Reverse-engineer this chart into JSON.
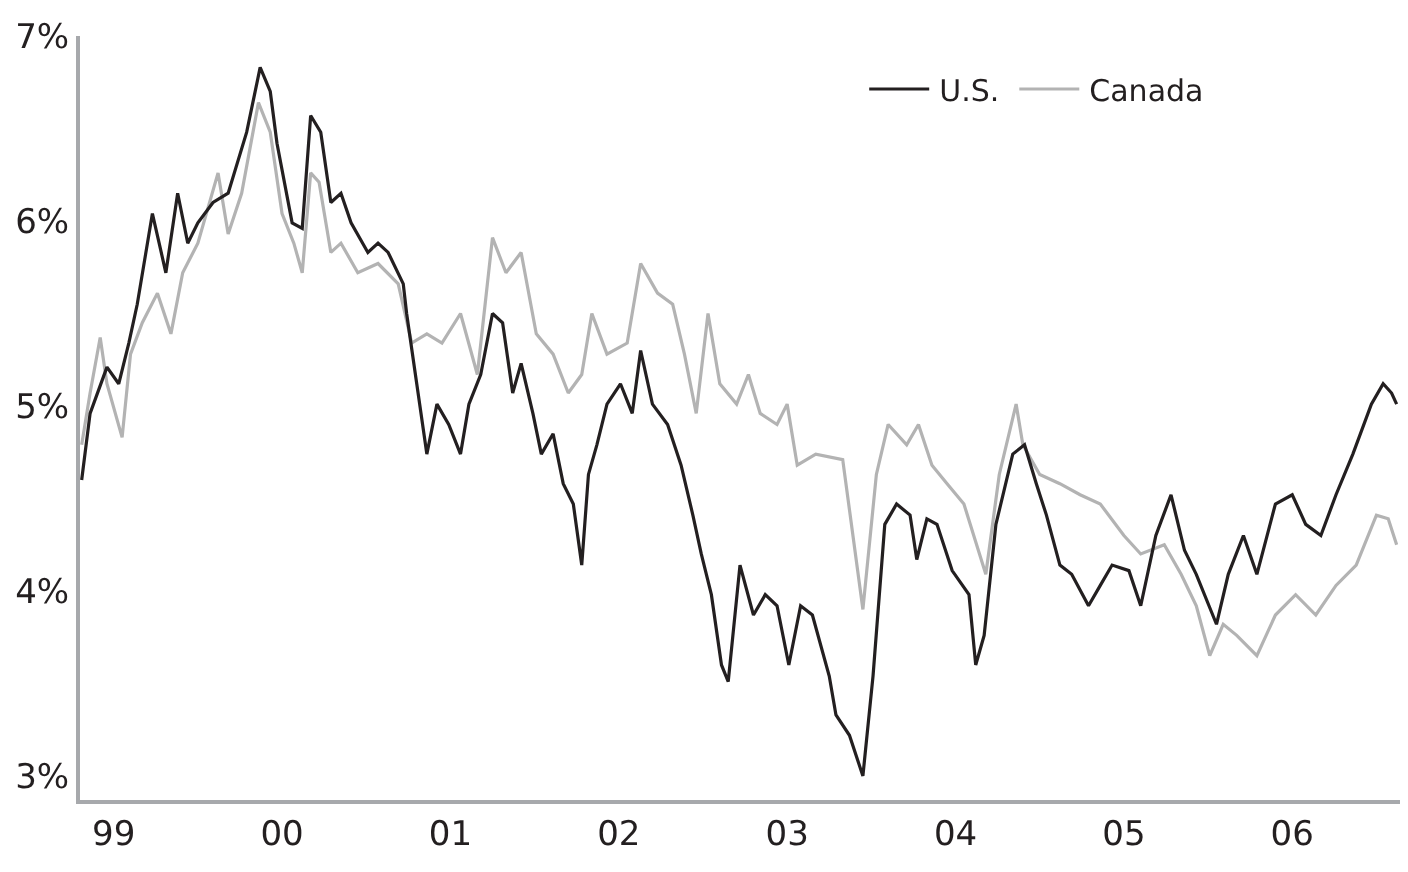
{
  "chart_data": {
    "type": "line",
    "xlim": [
      1998.8,
      2006.64
    ],
    "ylim": [
      2.87,
      7.0
    ],
    "xticks": [
      {
        "value": 1999,
        "label": "99"
      },
      {
        "value": 2000,
        "label": "00"
      },
      {
        "value": 2001,
        "label": "01"
      },
      {
        "value": 2002,
        "label": "02"
      },
      {
        "value": 2003,
        "label": "03"
      },
      {
        "value": 2004,
        "label": "04"
      },
      {
        "value": 2005,
        "label": "05"
      },
      {
        "value": 2006,
        "label": "06"
      }
    ],
    "yticks": [
      {
        "value": 3,
        "label": "3%"
      },
      {
        "value": 4,
        "label": "4%"
      },
      {
        "value": 5,
        "label": "5%"
      },
      {
        "value": 6,
        "label": "6%"
      },
      {
        "value": 7,
        "label": "7%"
      }
    ],
    "legend": "top right",
    "marker": "none",
    "line_style": "solid",
    "series": [
      {
        "name": "U.S.",
        "color": "#231f20",
        "x": [
          1998.81,
          1998.86,
          1998.96,
          1999.03,
          1999.09,
          1999.14,
          1999.23,
          1999.27,
          1999.31,
          1999.38,
          1999.44,
          1999.5,
          1999.59,
          1999.68,
          1999.79,
          1999.87,
          1999.93,
          1999.97,
          2000.06,
          2000.12,
          2000.17,
          2000.23,
          2000.29,
          2000.35,
          2000.41,
          2000.51,
          2000.57,
          2000.63,
          2000.72,
          2000.74,
          2000.8,
          2000.86,
          2000.92,
          2000.99,
          2001.06,
          2001.11,
          2001.18,
          2001.25,
          2001.31,
          2001.37,
          2001.42,
          2001.49,
          2001.54,
          2001.61,
          2001.67,
          2001.73,
          2001.78,
          2001.82,
          2001.87,
          2001.93,
          2002.01,
          2002.08,
          2002.13,
          2002.2,
          2002.29,
          2002.37,
          2002.44,
          2002.49,
          2002.55,
          2002.61,
          2002.65,
          2002.72,
          2002.8,
          2002.87,
          2002.94,
          2003.01,
          2003.08,
          2003.15,
          2003.25,
          2003.29,
          2003.37,
          2003.45,
          2003.51,
          2003.58,
          2003.65,
          2003.73,
          2003.77,
          2003.83,
          2003.89,
          2003.98,
          2004.08,
          2004.12,
          2004.17,
          2004.24,
          2004.34,
          2004.41,
          2004.48,
          2004.54,
          2004.62,
          2004.69,
          2004.79,
          2004.86,
          2004.93,
          2005.03,
          2005.1,
          2005.19,
          2005.28,
          2005.36,
          2005.43,
          2005.55,
          2005.62,
          2005.71,
          2005.79,
          2005.9,
          2006.0,
          2006.08,
          2006.17,
          2006.26,
          2006.36,
          2006.47,
          2006.54,
          2006.59,
          2006.62
        ],
        "values": [
          4.6,
          4.96,
          5.21,
          5.12,
          5.34,
          5.55,
          6.04,
          5.88,
          5.72,
          6.15,
          5.88,
          5.99,
          6.1,
          6.15,
          6.48,
          6.83,
          6.7,
          6.42,
          5.99,
          5.96,
          6.57,
          6.48,
          6.1,
          6.15,
          5.99,
          5.83,
          5.88,
          5.83,
          5.66,
          5.5,
          5.12,
          4.74,
          5.01,
          4.9,
          4.74,
          5.01,
          5.17,
          5.5,
          5.45,
          5.07,
          5.23,
          4.96,
          4.74,
          4.85,
          4.58,
          4.47,
          4.14,
          4.63,
          4.79,
          5.01,
          5.12,
          4.96,
          5.3,
          5.01,
          4.9,
          4.68,
          4.41,
          4.2,
          3.98,
          3.6,
          3.51,
          4.14,
          3.87,
          3.98,
          3.92,
          3.6,
          3.92,
          3.87,
          3.54,
          3.33,
          3.22,
          3.0,
          3.54,
          4.36,
          4.47,
          4.41,
          4.17,
          4.39,
          4.36,
          4.11,
          3.98,
          3.6,
          3.76,
          4.36,
          4.74,
          4.79,
          4.58,
          4.41,
          4.14,
          4.09,
          3.92,
          4.03,
          4.14,
          4.11,
          3.92,
          4.3,
          4.52,
          4.22,
          4.09,
          3.82,
          4.09,
          4.3,
          4.09,
          4.47,
          4.52,
          4.36,
          4.3,
          4.52,
          4.74,
          5.01,
          5.12,
          5.07,
          5.01
        ]
      },
      {
        "name": "Canada",
        "color": "#b3b3b3",
        "x": [
          1998.81,
          1998.86,
          1998.92,
          1998.96,
          1999.05,
          1999.1,
          1999.17,
          1999.26,
          1999.34,
          1999.41,
          1999.5,
          1999.62,
          1999.68,
          1999.76,
          1999.86,
          1999.93,
          2000.0,
          2000.07,
          2000.12,
          2000.17,
          2000.22,
          2000.29,
          2000.35,
          2000.45,
          2000.57,
          2000.69,
          2000.77,
          2000.86,
          2000.95,
          2001.06,
          2001.16,
          2001.25,
          2001.33,
          2001.42,
          2001.51,
          2001.61,
          2001.7,
          2001.78,
          2001.84,
          2001.93,
          2002.05,
          2002.13,
          2002.23,
          2002.32,
          2002.39,
          2002.46,
          2002.53,
          2002.6,
          2002.7,
          2002.77,
          2002.84,
          2002.94,
          2003.0,
          2003.06,
          2003.17,
          2003.33,
          2003.45,
          2003.53,
          2003.6,
          2003.71,
          2003.78,
          2003.86,
          2003.95,
          2004.05,
          2004.18,
          2004.26,
          2004.36,
          2004.4,
          2004.5,
          2004.62,
          2004.74,
          2004.86,
          2005.0,
          2005.1,
          2005.24,
          2005.34,
          2005.43,
          2005.51,
          2005.59,
          2005.67,
          2005.79,
          2005.9,
          2006.02,
          2006.14,
          2006.26,
          2006.38,
          2006.5,
          2006.57,
          2006.62
        ],
        "values": [
          4.79,
          5.07,
          5.37,
          5.12,
          4.83,
          5.28,
          5.45,
          5.61,
          5.39,
          5.72,
          5.88,
          6.26,
          5.93,
          6.15,
          6.64,
          6.48,
          6.04,
          5.88,
          5.72,
          6.26,
          6.21,
          5.83,
          5.88,
          5.72,
          5.77,
          5.66,
          5.34,
          5.39,
          5.34,
          5.5,
          5.17,
          5.91,
          5.72,
          5.83,
          5.39,
          5.28,
          5.07,
          5.17,
          5.5,
          5.28,
          5.34,
          5.77,
          5.61,
          5.55,
          5.28,
          4.96,
          5.5,
          5.12,
          5.01,
          5.17,
          4.96,
          4.9,
          5.01,
          4.68,
          4.74,
          4.71,
          3.9,
          4.63,
          4.9,
          4.79,
          4.9,
          4.68,
          4.58,
          4.47,
          4.09,
          4.63,
          5.01,
          4.79,
          4.63,
          4.58,
          4.52,
          4.47,
          4.3,
          4.2,
          4.25,
          4.09,
          3.92,
          3.65,
          3.82,
          3.76,
          3.65,
          3.87,
          3.98,
          3.87,
          4.03,
          4.14,
          4.41,
          4.39,
          4.25
        ]
      }
    ]
  }
}
